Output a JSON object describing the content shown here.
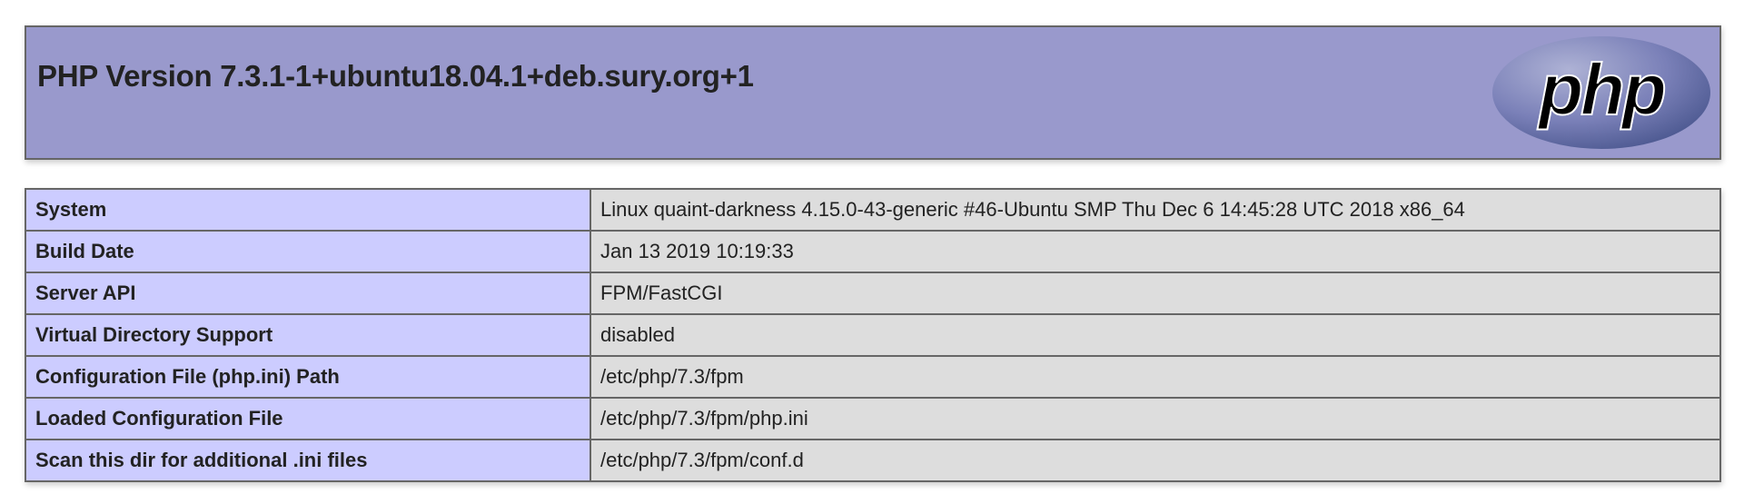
{
  "header": {
    "title": "PHP Version 7.3.1-1+ubuntu18.04.1+deb.sury.org+1",
    "logo_text": "php"
  },
  "colors": {
    "header_bg": "#9999cc",
    "label_bg": "#ccccff",
    "value_bg": "#dddddd"
  },
  "rows": [
    {
      "label": "System",
      "value": "Linux quaint-darkness 4.15.0-43-generic #46-Ubuntu SMP Thu Dec 6 14:45:28 UTC 2018 x86_64"
    },
    {
      "label": "Build Date",
      "value": "Jan 13 2019 10:19:33"
    },
    {
      "label": "Server API",
      "value": "FPM/FastCGI"
    },
    {
      "label": "Virtual Directory Support",
      "value": "disabled"
    },
    {
      "label": "Configuration File (php.ini) Path",
      "value": "/etc/php/7.3/fpm"
    },
    {
      "label": "Loaded Configuration File",
      "value": "/etc/php/7.3/fpm/php.ini"
    },
    {
      "label": "Scan this dir for additional .ini files",
      "value": "/etc/php/7.3/fpm/conf.d"
    }
  ]
}
